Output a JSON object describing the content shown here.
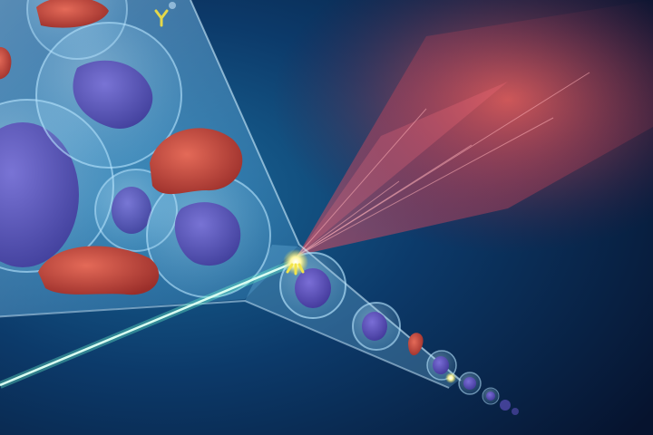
{
  "scene": {
    "subject": "flow-cytometry-illustration",
    "colors": {
      "bg_deep": "#06132e",
      "bg_mid": "#0c3a6a",
      "bg_light": "#1a6a9a",
      "funnel": "#8fd3ff",
      "cell_membrane": "#b9e6ff",
      "nucleus": "#5a4fb8",
      "red_cell": "#c94a3c",
      "laser": "#b6ffe6",
      "scatter": "#ff5a6a",
      "antibody": "#f2e44a"
    },
    "icons": [
      "laser-beam-icon",
      "antibody-marker-icon",
      "light-scatter-icon"
    ]
  }
}
